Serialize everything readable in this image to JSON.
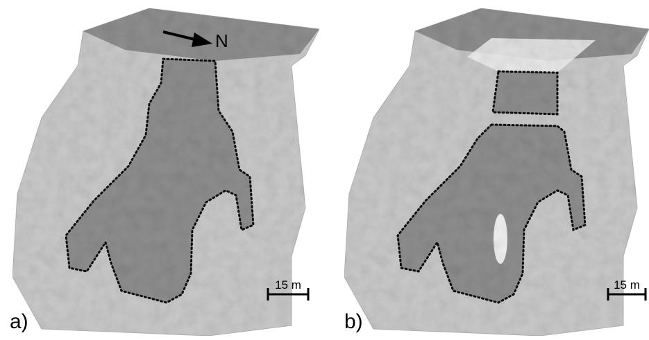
{
  "panels": [
    {
      "label": "a)",
      "north_label": "N",
      "scale_label": "15 m"
    },
    {
      "label": "b)",
      "scale_label": "15 m"
    }
  ]
}
